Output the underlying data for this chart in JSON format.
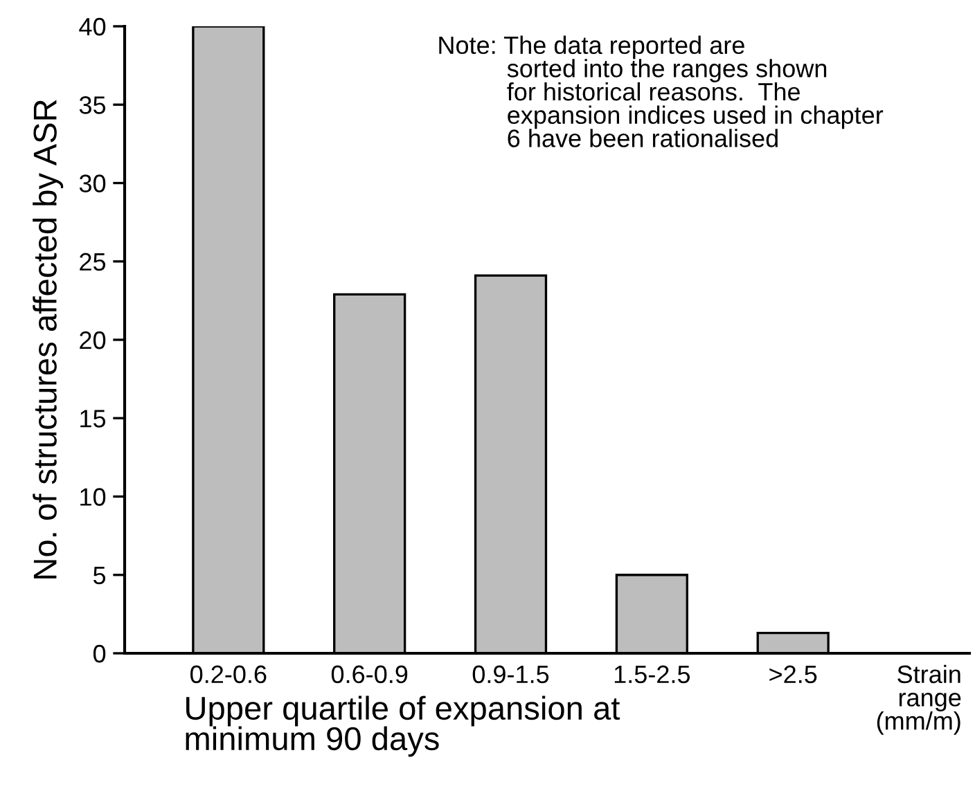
{
  "chart_data": {
    "type": "bar",
    "xlabel": "Upper quartile of expansion at\nminimum 90 days",
    "ylabel": "No. of structures affected by ASR",
    "categories": [
      "0.2-0.6",
      "0.6-0.9",
      "0.9-1.5",
      "1.5-2.5",
      ">2.5"
    ],
    "values": [
      40,
      22.9,
      24.1,
      5,
      1.3
    ],
    "color": "#bdbdbd",
    "ylim": [
      0,
      40
    ],
    "yticks": [
      0,
      5,
      10,
      15,
      20,
      25,
      30,
      35,
      40
    ],
    "grid": false,
    "annotations": [
      "Note: The data reported are\n          sorted into the ranges shown\n          for historical reasons.  The\n          expansion indices used in chapter\n          6 have been rationalised",
      "Strain\nrange\n(mm/m)"
    ]
  }
}
